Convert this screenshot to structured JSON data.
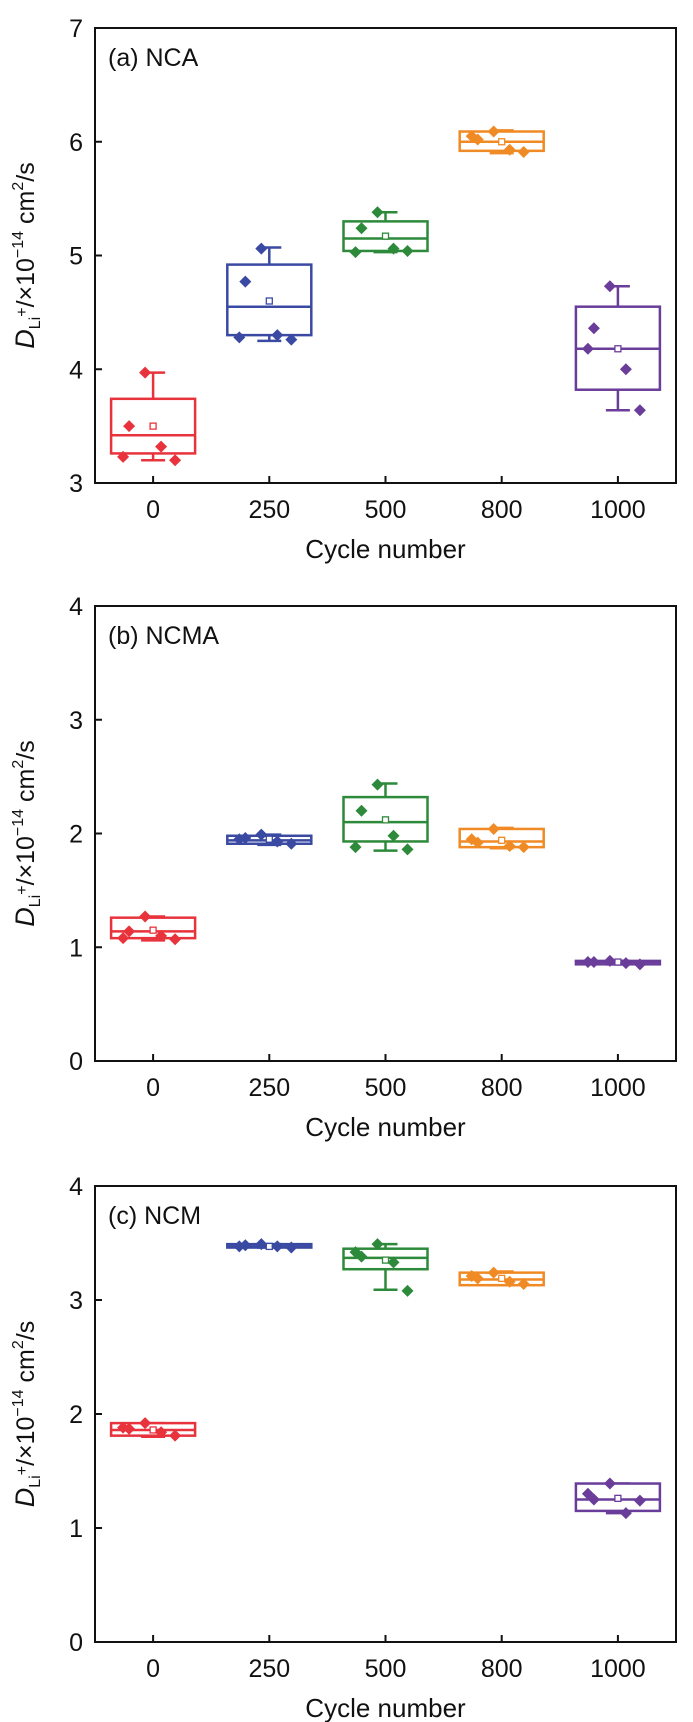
{
  "chart_data": [
    {
      "type": "box",
      "title": "(a) NCA",
      "xlabel": "Cycle number",
      "ylabel": {
        "symbol": "D",
        "subscript": "Li",
        "sup": "+",
        "rest": "/×10",
        "exponent": "−14",
        "unit_main": " cm",
        "unit_sup": "2",
        "unit_tail": "/s"
      },
      "categories": [
        "0",
        "250",
        "500",
        "800",
        "1000"
      ],
      "ylim": [
        3,
        7
      ],
      "yticks": [
        "3",
        "4",
        "5",
        "6",
        "7"
      ],
      "boxes": [
        {
          "q1": 3.26,
          "median": 3.42,
          "q3": 3.74,
          "whisker_low": 3.2,
          "whisker_high": 3.97,
          "mean": 3.5,
          "points": [
            3.97,
            3.5,
            3.32,
            3.2,
            3.23
          ]
        },
        {
          "q1": 4.3,
          "median": 4.55,
          "q3": 4.92,
          "whisker_low": 4.25,
          "whisker_high": 5.07,
          "mean": 4.6,
          "points": [
            5.06,
            4.77,
            4.3,
            4.26,
            4.28
          ]
        },
        {
          "q1": 5.04,
          "median": 5.15,
          "q3": 5.3,
          "whisker_low": 5.03,
          "whisker_high": 5.38,
          "mean": 5.17,
          "points": [
            5.38,
            5.24,
            5.06,
            5.04,
            5.03
          ]
        },
        {
          "q1": 5.92,
          "median": 6.0,
          "q3": 6.09,
          "whisker_low": 5.9,
          "whisker_high": 6.1,
          "mean": 6.0,
          "points": [
            6.09,
            6.02,
            5.93,
            5.91,
            6.05
          ]
        },
        {
          "q1": 3.82,
          "median": 4.18,
          "q3": 4.55,
          "whisker_low": 3.64,
          "whisker_high": 4.73,
          "mean": 4.18,
          "points": [
            4.73,
            4.36,
            4.0,
            3.64,
            4.18
          ]
        }
      ],
      "colors": [
        "#e8333c",
        "#3a4aa3",
        "#2d8a3a",
        "#f08a24",
        "#6a3d9a"
      ]
    },
    {
      "type": "box",
      "title": "(b) NCMA",
      "xlabel": "Cycle number",
      "ylabel": {
        "symbol": "D",
        "subscript": "Li",
        "sup": "+",
        "rest": "/×10",
        "exponent": "−14",
        "unit_main": " cm",
        "unit_sup": "2",
        "unit_tail": "/s"
      },
      "categories": [
        "0",
        "250",
        "500",
        "800",
        "1000"
      ],
      "ylim": [
        0,
        4
      ],
      "yticks": [
        "0",
        "1",
        "2",
        "3",
        "4"
      ],
      "boxes": [
        {
          "q1": 1.08,
          "median": 1.14,
          "q3": 1.26,
          "whisker_low": 1.06,
          "whisker_high": 1.27,
          "mean": 1.15,
          "points": [
            1.27,
            1.14,
            1.1,
            1.07,
            1.08
          ]
        },
        {
          "q1": 1.91,
          "median": 1.94,
          "q3": 1.98,
          "whisker_low": 1.9,
          "whisker_high": 1.99,
          "mean": 1.95,
          "points": [
            1.99,
            1.96,
            1.93,
            1.91,
            1.95
          ]
        },
        {
          "q1": 1.93,
          "median": 2.1,
          "q3": 2.32,
          "whisker_low": 1.85,
          "whisker_high": 2.44,
          "mean": 2.12,
          "points": [
            2.43,
            2.2,
            1.98,
            1.86,
            1.88
          ]
        },
        {
          "q1": 1.88,
          "median": 1.93,
          "q3": 2.04,
          "whisker_low": 1.87,
          "whisker_high": 2.05,
          "mean": 1.94,
          "points": [
            2.04,
            1.92,
            1.89,
            1.88,
            1.95
          ]
        },
        {
          "q1": 0.85,
          "median": 0.87,
          "q3": 0.88,
          "whisker_low": 0.85,
          "whisker_high": 0.88,
          "mean": 0.87,
          "points": [
            0.88,
            0.87,
            0.86,
            0.85,
            0.87
          ]
        }
      ],
      "colors": [
        "#e8333c",
        "#3a4aa3",
        "#2d8a3a",
        "#f08a24",
        "#6a3d9a"
      ]
    },
    {
      "type": "box",
      "title": "(c) NCM",
      "xlabel": "Cycle number",
      "ylabel": {
        "symbol": "D",
        "subscript": "Li",
        "sup": "+",
        "rest": "/×10",
        "exponent": "−14",
        "unit_main": " cm",
        "unit_sup": "2",
        "unit_tail": "/s"
      },
      "categories": [
        "0",
        "250",
        "500",
        "800",
        "1000"
      ],
      "ylim": [
        0,
        4
      ],
      "yticks": [
        "0",
        "1",
        "2",
        "3",
        "4"
      ],
      "boxes": [
        {
          "q1": 1.81,
          "median": 1.86,
          "q3": 1.92,
          "whisker_low": 1.8,
          "whisker_high": 1.92,
          "mean": 1.86,
          "points": [
            1.92,
            1.87,
            1.84,
            1.81,
            1.88
          ]
        },
        {
          "q1": 3.46,
          "median": 3.47,
          "q3": 3.49,
          "whisker_low": 3.46,
          "whisker_high": 3.49,
          "mean": 3.47,
          "points": [
            3.49,
            3.48,
            3.47,
            3.46,
            3.47
          ]
        },
        {
          "q1": 3.27,
          "median": 3.37,
          "q3": 3.45,
          "whisker_low": 3.09,
          "whisker_high": 3.49,
          "mean": 3.35,
          "points": [
            3.49,
            3.38,
            3.33,
            3.08,
            3.42
          ]
        },
        {
          "q1": 3.13,
          "median": 3.18,
          "q3": 3.24,
          "whisker_low": 3.13,
          "whisker_high": 3.25,
          "mean": 3.19,
          "points": [
            3.24,
            3.19,
            3.16,
            3.14,
            3.21
          ]
        },
        {
          "q1": 1.15,
          "median": 1.25,
          "q3": 1.39,
          "whisker_low": 1.13,
          "whisker_high": 1.39,
          "mean": 1.26,
          "points": [
            1.39,
            1.25,
            1.13,
            1.24,
            1.3
          ]
        }
      ],
      "colors": [
        "#e8333c",
        "#3a4aa3",
        "#2d8a3a",
        "#f08a24",
        "#6a3d9a"
      ]
    }
  ]
}
